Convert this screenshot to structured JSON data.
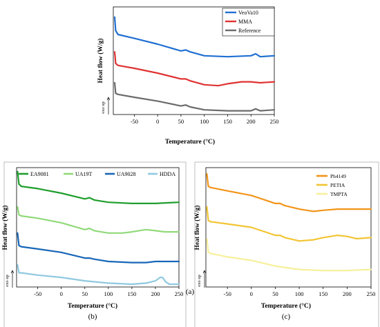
{
  "chart_data": [
    {
      "id": "a",
      "type": "line",
      "panel_label": "(a)",
      "title": "",
      "xlabel": "Temperature (°C)",
      "ylabel": "Heat flow (W/g)",
      "y_annotation": "exo up",
      "xlim": [
        -95,
        250
      ],
      "xticks": [
        -50,
        0,
        50,
        100,
        150,
        200,
        250
      ],
      "legend_position": "top-right",
      "series": [
        {
          "name": "VeoVa10",
          "color": "#1f6fd1",
          "x": [
            -92,
            -90,
            -85,
            -50,
            0,
            50,
            60,
            70,
            100,
            150,
            200,
            210,
            220,
            250
          ],
          "y": [
            0.98,
            0.84,
            0.8,
            0.76,
            0.7,
            0.63,
            0.64,
            0.62,
            0.58,
            0.57,
            0.58,
            0.6,
            0.57,
            0.58
          ]
        },
        {
          "name": "MMA",
          "color": "#e03232",
          "x": [
            -92,
            -90,
            -85,
            -50,
            0,
            50,
            60,
            70,
            100,
            130,
            150,
            180,
            200,
            220,
            250
          ],
          "y": [
            0.62,
            0.5,
            0.48,
            0.45,
            0.4,
            0.34,
            0.34,
            0.32,
            0.28,
            0.27,
            0.29,
            0.31,
            0.31,
            0.3,
            0.31
          ]
        },
        {
          "name": "Reference",
          "color": "#6b6b6b",
          "x": [
            -92,
            -90,
            -85,
            -50,
            0,
            50,
            60,
            70,
            100,
            150,
            200,
            210,
            220,
            250
          ],
          "y": [
            0.3,
            0.19,
            0.18,
            0.15,
            0.11,
            0.06,
            0.07,
            0.05,
            0.02,
            0.01,
            0.01,
            0.03,
            0.01,
            0.02
          ]
        }
      ]
    },
    {
      "id": "b",
      "type": "line",
      "panel_label": "(b)",
      "title": "",
      "xlabel": "Temperature (°C)",
      "ylabel": "Heat flow (W/g)",
      "y_annotation": "exo up",
      "xlim": [
        -95,
        250
      ],
      "xticks": [
        -50,
        0,
        50,
        100,
        150,
        200,
        250
      ],
      "legend_position": "top",
      "series": [
        {
          "name": "EA9081",
          "color": "#1f9e2c",
          "x": [
            -93,
            -90,
            -85,
            -50,
            0,
            50,
            60,
            70,
            100,
            150,
            200,
            250
          ],
          "y": [
            0.99,
            0.88,
            0.86,
            0.84,
            0.8,
            0.75,
            0.76,
            0.74,
            0.72,
            0.71,
            0.71,
            0.72
          ]
        },
        {
          "name": "UA19T",
          "color": "#90d978",
          "x": [
            -93,
            -90,
            -85,
            -50,
            0,
            50,
            60,
            70,
            100,
            130,
            150,
            180,
            200,
            220,
            250
          ],
          "y": [
            0.68,
            0.61,
            0.6,
            0.58,
            0.54,
            0.48,
            0.49,
            0.47,
            0.45,
            0.45,
            0.46,
            0.48,
            0.47,
            0.46,
            0.46
          ]
        },
        {
          "name": "UA9028",
          "color": "#1866b8",
          "x": [
            -93,
            -90,
            -85,
            -50,
            0,
            50,
            60,
            70,
            100,
            150,
            180,
            200,
            250
          ],
          "y": [
            0.45,
            0.34,
            0.33,
            0.31,
            0.28,
            0.23,
            0.23,
            0.22,
            0.2,
            0.19,
            0.19,
            0.2,
            0.2
          ]
        },
        {
          "name": "HDDA",
          "color": "#8fc9e0",
          "x": [
            -93,
            -90,
            -85,
            -50,
            0,
            50,
            100,
            150,
            180,
            200,
            210,
            215,
            222,
            230,
            250
          ],
          "y": [
            0.17,
            0.1,
            0.1,
            0.08,
            0.06,
            0.03,
            0.01,
            0.0,
            0.01,
            0.03,
            0.06,
            0.06,
            0.02,
            0.0,
            0.0
          ]
        }
      ]
    },
    {
      "id": "c",
      "type": "line",
      "panel_label": "(c)",
      "title": "",
      "xlabel": "Temperature (°C)",
      "ylabel": "Heat flow (W/g)",
      "y_annotation": "exo up",
      "xlim": [
        -95,
        250
      ],
      "xticks": [
        -50,
        0,
        50,
        100,
        150,
        200,
        250
      ],
      "legend_position": "top-right",
      "series": [
        {
          "name": "Ph4149",
          "color": "#f29418",
          "x": [
            -93,
            -90,
            -85,
            -50,
            0,
            50,
            60,
            70,
            100,
            130,
            150,
            180,
            200,
            250
          ],
          "y": [
            0.97,
            0.86,
            0.85,
            0.82,
            0.78,
            0.71,
            0.71,
            0.69,
            0.66,
            0.64,
            0.65,
            0.66,
            0.66,
            0.66
          ]
        },
        {
          "name": "PETIA",
          "color": "#f2c534",
          "x": [
            -93,
            -90,
            -85,
            -50,
            0,
            50,
            60,
            70,
            100,
            130,
            150,
            180,
            200,
            220,
            250
          ],
          "y": [
            0.68,
            0.56,
            0.55,
            0.53,
            0.5,
            0.43,
            0.43,
            0.41,
            0.38,
            0.39,
            0.41,
            0.43,
            0.42,
            0.4,
            0.41
          ]
        },
        {
          "name": "TMPTA",
          "color": "#f7f09a",
          "x": [
            -93,
            -90,
            -85,
            -50,
            0,
            50,
            100,
            150,
            200,
            250
          ],
          "y": [
            0.4,
            0.28,
            0.27,
            0.24,
            0.21,
            0.16,
            0.13,
            0.12,
            0.12,
            0.13
          ]
        }
      ]
    }
  ]
}
